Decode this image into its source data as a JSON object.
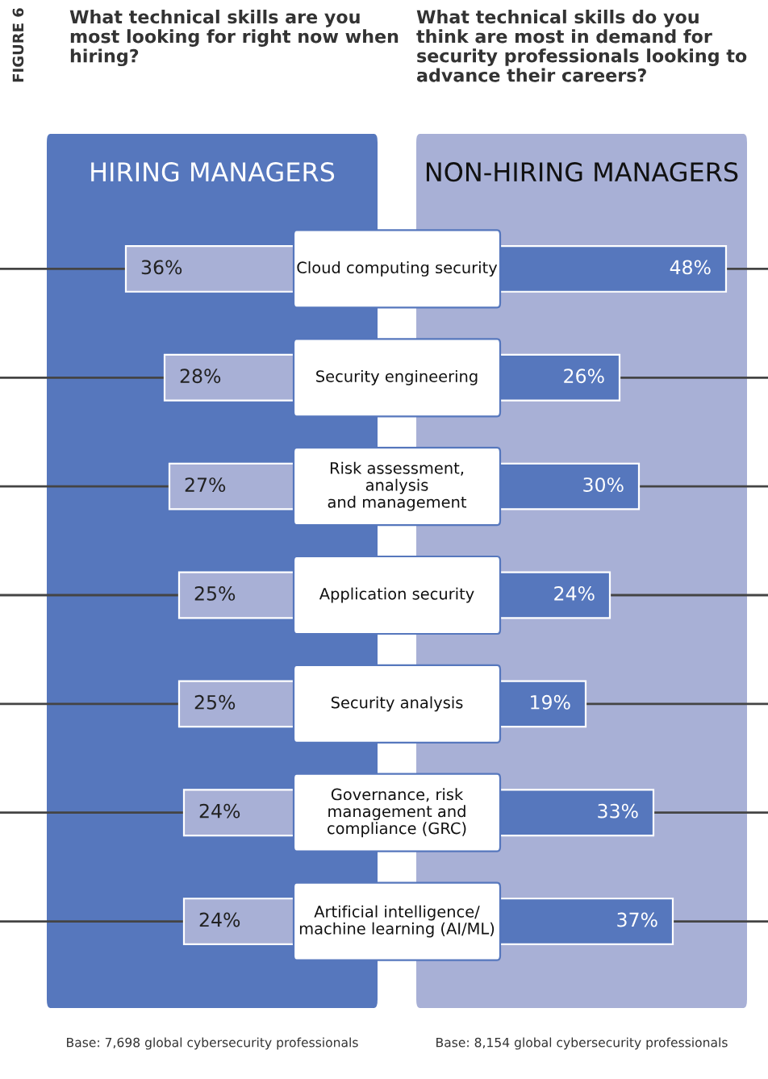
{
  "chart_data": [
    {
      "type": "bar",
      "orientation": "horizontal",
      "title": "What technical skills are you most looking for right now when hiring?",
      "subtitle": "HIRING MANAGERS",
      "categories": [
        "Cloud computing security",
        "Security engineering",
        "Risk assessment,\nanalysis\nand management",
        "Application security",
        "Security analysis",
        "Governance, risk\nmanagement and\ncompliance (GRC)",
        "Artificial intelligence/\nmachine learning (AI/ML)"
      ],
      "series": [
        {
          "color": "#a8b0d6",
          "values": [
            36,
            28,
            27,
            25,
            25,
            24,
            24
          ],
          "value_labels": [
            "36%",
            "28%",
            "27%",
            "25%",
            "25%",
            "24%",
            "24%"
          ]
        }
      ],
      "grid": "y",
      "annotations": [
        "FIGURE 6",
        "Base: 7,698 global cybersecurity professionals"
      ]
    },
    {
      "type": "bar",
      "orientation": "horizontal",
      "title": "What technical skills do you think are most in demand for security professionals looking to advance their careers?",
      "subtitle": "NON-HIRING MANAGERS",
      "categories": [
        null,
        null,
        null,
        null,
        null,
        null,
        null
      ],
      "series": [
        {
          "color": "#5677bd",
          "values": [
            48,
            26,
            30,
            24,
            19,
            33,
            37
          ],
          "value_labels": [
            "48%",
            "26%",
            "30%",
            "24%",
            "19%",
            "33%",
            "37%"
          ]
        }
      ],
      "grid": "y",
      "annotations": [
        "Base: 8,154 global cybersecurity professionals"
      ]
    }
  ]
}
